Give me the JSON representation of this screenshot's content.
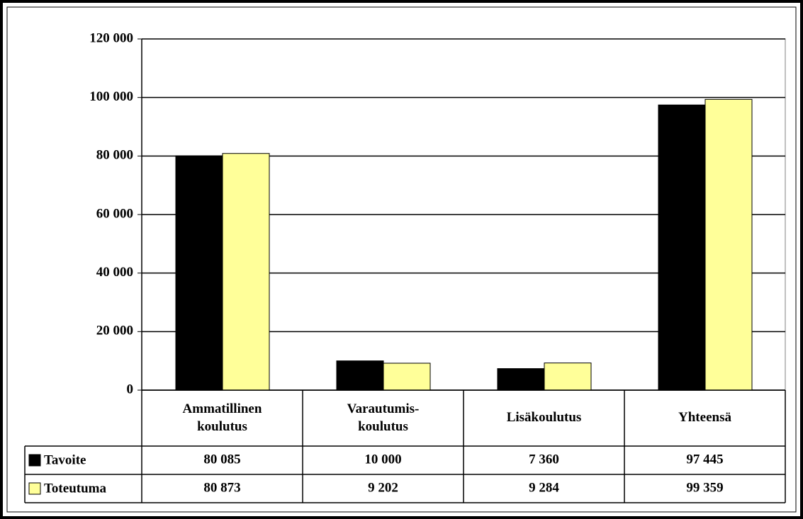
{
  "chart_data": {
    "type": "bar",
    "categories": [
      "Ammatillinen\nkoulutus",
      "Varautumis-\nkoulutus",
      "Lisäkoulutus",
      "Yhteensä"
    ],
    "series": [
      {
        "name": "Tavoite",
        "color": "#000000",
        "values": [
          80085,
          10000,
          7360,
          97445
        ],
        "value_labels": [
          "80 085",
          "10 000",
          "7 360",
          "97 445"
        ]
      },
      {
        "name": "Toteutuma",
        "color": "#ffff99",
        "values": [
          80873,
          9202,
          9284,
          99359
        ],
        "value_labels": [
          "80 873",
          "9 202",
          "9 284",
          "99 359"
        ]
      }
    ],
    "ylim": [
      0,
      120000
    ],
    "yticks": [
      0,
      {
        "value": 20000,
        "label": "20 000"
      },
      {
        "value": 40000,
        "label": "40 000"
      },
      {
        "value": 60000,
        "label": "60 000"
      },
      {
        "value": 80000,
        "label": "80 000"
      },
      {
        "value": 100000,
        "label": "100 000"
      },
      {
        "value": 120000,
        "label": "120 000"
      }
    ],
    "grid": true
  }
}
